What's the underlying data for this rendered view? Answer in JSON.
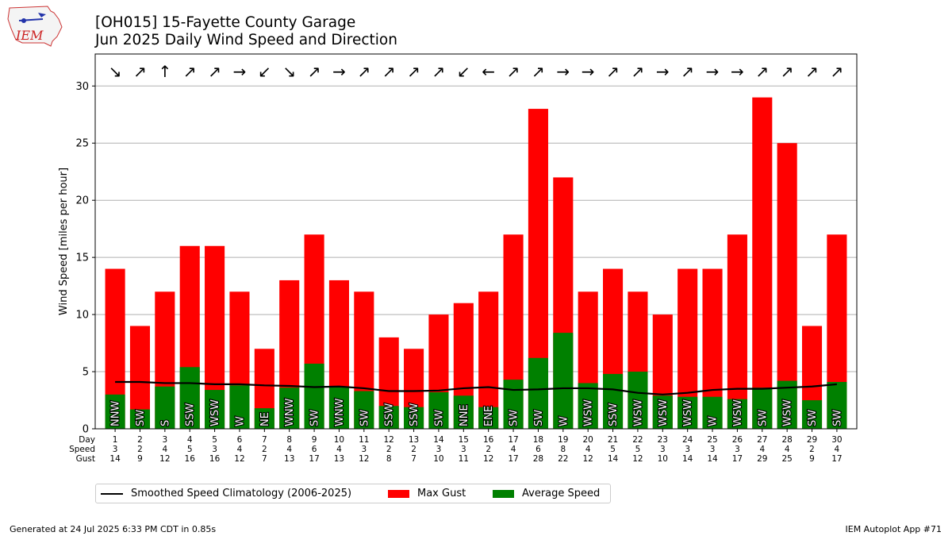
{
  "header": {
    "title_line1": "[OH015] 15-Fayette County Garage",
    "title_line2": "Jun 2025 Daily Wind Speed and Direction",
    "logo_text": "IEM"
  },
  "footer": {
    "generated": "Generated at 24 Jul 2025 6:33 PM CDT in 0.85s",
    "app": "IEM Autoplot App #71"
  },
  "legend": {
    "climatology": "Smoothed Speed Climatology (2006-2025)",
    "gust": "Max Gust",
    "avg": "Average Speed"
  },
  "colors": {
    "gust": "#ff0000",
    "avg": "#008000",
    "climo": "#000000",
    "grid": "#b0b0b0"
  },
  "chart_data": {
    "type": "bar",
    "ylabel": "Wind Speed [miles per hour]",
    "ylim": [
      0,
      32.8
    ],
    "yticks": [
      0,
      5,
      10,
      15,
      20,
      25,
      30
    ],
    "grid": "y",
    "legend_position": "below",
    "row_labels": [
      "Day",
      "Speed",
      "Gust"
    ],
    "days": [
      1,
      2,
      3,
      4,
      5,
      6,
      7,
      8,
      9,
      10,
      11,
      12,
      13,
      14,
      15,
      16,
      17,
      18,
      19,
      20,
      21,
      22,
      23,
      24,
      25,
      26,
      27,
      28,
      29,
      30
    ],
    "speed_labels": [
      3,
      2,
      4,
      5,
      3,
      4,
      2,
      4,
      6,
      4,
      3,
      2,
      2,
      3,
      3,
      2,
      4,
      6,
      8,
      4,
      5,
      5,
      3,
      3,
      3,
      3,
      4,
      4,
      2,
      4
    ],
    "gust_labels": [
      14,
      9,
      12,
      16,
      16,
      12,
      7,
      13,
      17,
      13,
      12,
      8,
      7,
      10,
      11,
      12,
      17,
      28,
      22,
      12,
      14,
      12,
      10,
      14,
      14,
      17,
      29,
      25,
      9,
      17
    ],
    "series": [
      {
        "name": "Max Gust",
        "values": [
          14,
          9,
          12,
          16,
          16,
          12,
          7,
          13,
          17,
          13,
          12,
          8,
          7,
          10,
          11,
          12,
          17,
          28,
          22,
          12,
          14,
          12,
          10,
          14,
          14,
          17,
          29,
          25,
          9,
          17
        ]
      },
      {
        "name": "Average Speed",
        "values": [
          3.0,
          1.7,
          3.7,
          5.4,
          3.4,
          3.8,
          1.8,
          3.6,
          5.7,
          3.7,
          3.3,
          2.0,
          1.9,
          3.2,
          2.9,
          1.9,
          4.3,
          6.2,
          8.4,
          4.0,
          4.8,
          5.0,
          2.9,
          2.8,
          2.8,
          2.6,
          3.6,
          4.2,
          2.5,
          4.1
        ]
      },
      {
        "name": "Smoothed Speed Climatology (2006-2025)",
        "values": [
          4.1,
          4.1,
          4.0,
          4.0,
          3.9,
          3.9,
          3.8,
          3.75,
          3.65,
          3.7,
          3.55,
          3.3,
          3.3,
          3.35,
          3.55,
          3.65,
          3.4,
          3.45,
          3.55,
          3.55,
          3.45,
          3.15,
          3.0,
          3.15,
          3.4,
          3.5,
          3.5,
          3.6,
          3.7,
          3.9
        ]
      }
    ],
    "directions": [
      "NNW",
      "SW",
      "S",
      "SSW",
      "WSW",
      "W",
      "NE",
      "WNW",
      "SW",
      "WNW",
      "SW",
      "SSW",
      "SSW",
      "SW",
      "NNE",
      "ENE",
      "SW",
      "SW",
      "W",
      "WSW",
      "SSW",
      "WSW",
      "WSW",
      "WSW",
      "W",
      "WSW",
      "SW",
      "WSW",
      "SW",
      "SW"
    ],
    "direction_arrows": [
      "↘",
      "↗",
      "↑",
      "↗",
      "↗",
      "→",
      "↙",
      "↘",
      "↗",
      "→",
      "↗",
      "↗",
      "↗",
      "↗",
      "↙",
      "←",
      "↗",
      "↗",
      "→",
      "→",
      "↗",
      "↗",
      "→",
      "↗",
      "→",
      "→",
      "↗",
      "↗",
      "↗",
      "↗"
    ]
  }
}
